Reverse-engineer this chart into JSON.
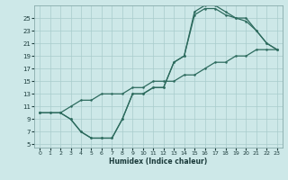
{
  "xlabel": "Humidex (Indice chaleur)",
  "bg_color": "#cde8e8",
  "grid_color": "#a8cccc",
  "line_color": "#2d6b5e",
  "xlim": [
    -0.5,
    23.5
  ],
  "ylim": [
    4.5,
    27
  ],
  "xticks": [
    0,
    1,
    2,
    3,
    4,
    5,
    6,
    7,
    8,
    9,
    10,
    11,
    12,
    13,
    14,
    15,
    16,
    17,
    18,
    19,
    20,
    21,
    22,
    23
  ],
  "yticks": [
    5,
    7,
    9,
    11,
    13,
    15,
    17,
    19,
    21,
    23,
    25
  ],
  "line1_x": [
    0,
    1,
    2,
    3,
    4,
    5,
    6,
    7,
    8,
    9,
    10,
    11,
    12,
    13,
    14,
    15,
    16,
    17,
    18,
    19,
    20,
    21,
    22,
    23
  ],
  "line1_y": [
    10,
    10,
    10,
    9,
    7,
    6,
    6,
    6,
    9,
    13,
    13,
    14,
    14,
    18,
    19,
    26,
    27,
    27,
    26,
    25,
    25,
    23,
    21,
    20
  ],
  "line2_x": [
    0,
    1,
    2,
    3,
    4,
    5,
    6,
    7,
    8,
    9,
    10,
    11,
    12,
    13,
    14,
    15,
    16,
    17,
    18,
    19,
    20,
    21,
    22,
    23
  ],
  "line2_y": [
    10,
    10,
    10,
    9,
    7,
    6,
    6,
    6,
    9,
    13,
    13,
    14,
    14,
    18,
    19,
    25.5,
    26.5,
    26.5,
    25.5,
    25,
    24.5,
    23,
    21,
    20
  ],
  "line3_x": [
    0,
    2,
    3,
    4,
    5,
    6,
    7,
    8,
    9,
    10,
    11,
    12,
    13,
    14,
    15,
    16,
    17,
    18,
    19,
    20,
    21,
    22,
    23
  ],
  "line3_y": [
    10,
    10,
    11,
    12,
    12,
    13,
    13,
    13,
    14,
    14,
    15,
    15,
    15,
    16,
    16,
    17,
    18,
    18,
    19,
    19,
    20,
    20,
    20
  ]
}
